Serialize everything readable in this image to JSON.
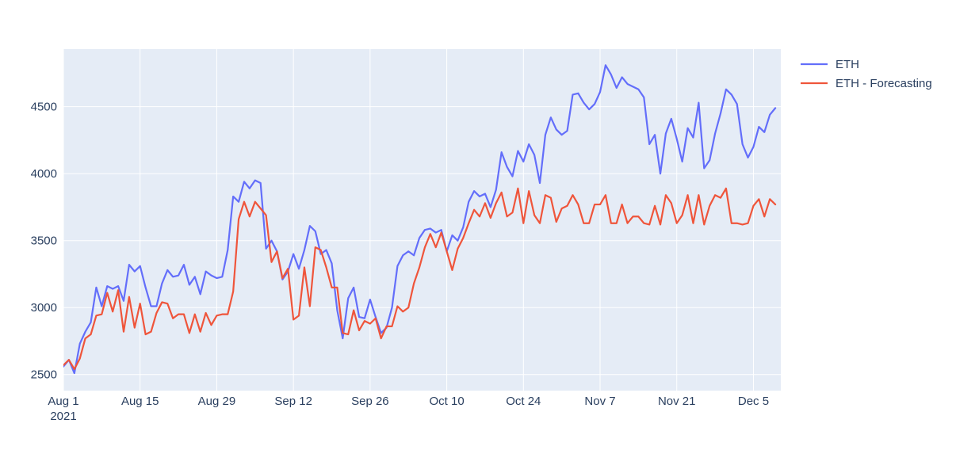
{
  "chart_data": {
    "type": "line",
    "x_start": "2021-08-01",
    "x_end": "2021-12-10",
    "x_ticks": [
      {
        "date": "2021-08-01",
        "label": "Aug 1",
        "sublabel": "2021"
      },
      {
        "date": "2021-08-15",
        "label": "Aug 15"
      },
      {
        "date": "2021-08-29",
        "label": "Aug 29"
      },
      {
        "date": "2021-09-12",
        "label": "Sep 12"
      },
      {
        "date": "2021-09-26",
        "label": "Sep 26"
      },
      {
        "date": "2021-10-10",
        "label": "Oct 10"
      },
      {
        "date": "2021-10-24",
        "label": "Oct 24"
      },
      {
        "date": "2021-11-07",
        "label": "Nov 7"
      },
      {
        "date": "2021-11-21",
        "label": "Nov 21"
      },
      {
        "date": "2021-12-05",
        "label": "Dec 5"
      }
    ],
    "ylim": [
      2380,
      4930
    ],
    "y_ticks": [
      2500,
      3000,
      3500,
      4000,
      4500
    ],
    "y_tick_labels": [
      "2500",
      "3000",
      "3500",
      "4000",
      "4500"
    ],
    "grid": true,
    "legend_position": "top-right",
    "series": [
      {
        "name": "ETH",
        "color": "#636efa",
        "points": [
          [
            "2021-08-01",
            2560
          ],
          [
            "2021-08-02",
            2610
          ],
          [
            "2021-08-03",
            2510
          ],
          [
            "2021-08-04",
            2730
          ],
          [
            "2021-08-05",
            2820
          ],
          [
            "2021-08-06",
            2890
          ],
          [
            "2021-08-07",
            3150
          ],
          [
            "2021-08-08",
            3010
          ],
          [
            "2021-08-09",
            3160
          ],
          [
            "2021-08-10",
            3140
          ],
          [
            "2021-08-11",
            3160
          ],
          [
            "2021-08-12",
            3050
          ],
          [
            "2021-08-13",
            3320
          ],
          [
            "2021-08-14",
            3270
          ],
          [
            "2021-08-15",
            3310
          ],
          [
            "2021-08-16",
            3150
          ],
          [
            "2021-08-17",
            3010
          ],
          [
            "2021-08-18",
            3010
          ],
          [
            "2021-08-19",
            3180
          ],
          [
            "2021-08-20",
            3280
          ],
          [
            "2021-08-21",
            3230
          ],
          [
            "2021-08-22",
            3240
          ],
          [
            "2021-08-23",
            3320
          ],
          [
            "2021-08-24",
            3170
          ],
          [
            "2021-08-25",
            3230
          ],
          [
            "2021-08-26",
            3100
          ],
          [
            "2021-08-27",
            3270
          ],
          [
            "2021-08-28",
            3240
          ],
          [
            "2021-08-29",
            3220
          ],
          [
            "2021-08-30",
            3230
          ],
          [
            "2021-08-31",
            3430
          ],
          [
            "2021-09-01",
            3830
          ],
          [
            "2021-09-02",
            3790
          ],
          [
            "2021-09-03",
            3940
          ],
          [
            "2021-09-04",
            3890
          ],
          [
            "2021-09-05",
            3950
          ],
          [
            "2021-09-06",
            3930
          ],
          [
            "2021-09-07",
            3440
          ],
          [
            "2021-09-08",
            3500
          ],
          [
            "2021-09-09",
            3420
          ],
          [
            "2021-09-10",
            3210
          ],
          [
            "2021-09-11",
            3270
          ],
          [
            "2021-09-12",
            3400
          ],
          [
            "2021-09-13",
            3290
          ],
          [
            "2021-09-14",
            3430
          ],
          [
            "2021-09-15",
            3610
          ],
          [
            "2021-09-16",
            3570
          ],
          [
            "2021-09-17",
            3400
          ],
          [
            "2021-09-18",
            3430
          ],
          [
            "2021-09-19",
            3330
          ],
          [
            "2021-09-20",
            2980
          ],
          [
            "2021-09-21",
            2770
          ],
          [
            "2021-09-22",
            3070
          ],
          [
            "2021-09-23",
            3150
          ],
          [
            "2021-09-24",
            2930
          ],
          [
            "2021-09-25",
            2920
          ],
          [
            "2021-09-26",
            3060
          ],
          [
            "2021-09-27",
            2930
          ],
          [
            "2021-09-28",
            2810
          ],
          [
            "2021-09-29",
            2850
          ],
          [
            "2021-09-30",
            3000
          ],
          [
            "2021-10-01",
            3310
          ],
          [
            "2021-10-02",
            3390
          ],
          [
            "2021-10-03",
            3420
          ],
          [
            "2021-10-04",
            3390
          ],
          [
            "2021-10-05",
            3520
          ],
          [
            "2021-10-06",
            3580
          ],
          [
            "2021-10-07",
            3590
          ],
          [
            "2021-10-08",
            3560
          ],
          [
            "2021-10-09",
            3580
          ],
          [
            "2021-10-10",
            3420
          ],
          [
            "2021-10-11",
            3540
          ],
          [
            "2021-10-12",
            3500
          ],
          [
            "2021-10-13",
            3600
          ],
          [
            "2021-10-14",
            3790
          ],
          [
            "2021-10-15",
            3870
          ],
          [
            "2021-10-16",
            3830
          ],
          [
            "2021-10-17",
            3850
          ],
          [
            "2021-10-18",
            3750
          ],
          [
            "2021-10-19",
            3880
          ],
          [
            "2021-10-20",
            4160
          ],
          [
            "2021-10-21",
            4050
          ],
          [
            "2021-10-22",
            3980
          ],
          [
            "2021-10-23",
            4170
          ],
          [
            "2021-10-24",
            4090
          ],
          [
            "2021-10-25",
            4220
          ],
          [
            "2021-10-26",
            4140
          ],
          [
            "2021-10-27",
            3930
          ],
          [
            "2021-10-28",
            4290
          ],
          [
            "2021-10-29",
            4420
          ],
          [
            "2021-10-30",
            4330
          ],
          [
            "2021-10-31",
            4290
          ],
          [
            "2021-11-01",
            4320
          ],
          [
            "2021-11-02",
            4590
          ],
          [
            "2021-11-03",
            4600
          ],
          [
            "2021-11-04",
            4530
          ],
          [
            "2021-11-05",
            4480
          ],
          [
            "2021-11-06",
            4520
          ],
          [
            "2021-11-07",
            4610
          ],
          [
            "2021-11-08",
            4810
          ],
          [
            "2021-11-09",
            4740
          ],
          [
            "2021-11-10",
            4640
          ],
          [
            "2021-11-11",
            4720
          ],
          [
            "2021-11-12",
            4670
          ],
          [
            "2021-11-13",
            4650
          ],
          [
            "2021-11-14",
            4630
          ],
          [
            "2021-11-15",
            4570
          ],
          [
            "2021-11-16",
            4220
          ],
          [
            "2021-11-17",
            4290
          ],
          [
            "2021-11-18",
            4000
          ],
          [
            "2021-11-19",
            4300
          ],
          [
            "2021-11-20",
            4410
          ],
          [
            "2021-11-21",
            4260
          ],
          [
            "2021-11-22",
            4090
          ],
          [
            "2021-11-23",
            4340
          ],
          [
            "2021-11-24",
            4270
          ],
          [
            "2021-11-25",
            4530
          ],
          [
            "2021-11-26",
            4040
          ],
          [
            "2021-11-27",
            4100
          ],
          [
            "2021-11-28",
            4300
          ],
          [
            "2021-11-29",
            4450
          ],
          [
            "2021-11-30",
            4630
          ],
          [
            "2021-12-01",
            4590
          ],
          [
            "2021-12-02",
            4520
          ],
          [
            "2021-12-03",
            4220
          ],
          [
            "2021-12-04",
            4120
          ],
          [
            "2021-12-05",
            4200
          ],
          [
            "2021-12-06",
            4350
          ],
          [
            "2021-12-07",
            4310
          ],
          [
            "2021-12-08",
            4440
          ],
          [
            "2021-12-09",
            4490
          ]
        ]
      },
      {
        "name": "ETH - Forecasting",
        "color": "#ef553b",
        "points": [
          [
            "2021-08-01",
            2570
          ],
          [
            "2021-08-02",
            2610
          ],
          [
            "2021-08-03",
            2540
          ],
          [
            "2021-08-04",
            2620
          ],
          [
            "2021-08-05",
            2770
          ],
          [
            "2021-08-06",
            2800
          ],
          [
            "2021-08-07",
            2940
          ],
          [
            "2021-08-08",
            2950
          ],
          [
            "2021-08-09",
            3110
          ],
          [
            "2021-08-10",
            2970
          ],
          [
            "2021-08-11",
            3130
          ],
          [
            "2021-08-12",
            2820
          ],
          [
            "2021-08-13",
            3080
          ],
          [
            "2021-08-14",
            2850
          ],
          [
            "2021-08-15",
            3030
          ],
          [
            "2021-08-16",
            2800
          ],
          [
            "2021-08-17",
            2820
          ],
          [
            "2021-08-18",
            2960
          ],
          [
            "2021-08-19",
            3040
          ],
          [
            "2021-08-20",
            3030
          ],
          [
            "2021-08-21",
            2920
          ],
          [
            "2021-08-22",
            2950
          ],
          [
            "2021-08-23",
            2950
          ],
          [
            "2021-08-24",
            2810
          ],
          [
            "2021-08-25",
            2950
          ],
          [
            "2021-08-26",
            2820
          ],
          [
            "2021-08-27",
            2960
          ],
          [
            "2021-08-28",
            2870
          ],
          [
            "2021-08-29",
            2940
          ],
          [
            "2021-08-30",
            2950
          ],
          [
            "2021-08-31",
            2950
          ],
          [
            "2021-09-01",
            3120
          ],
          [
            "2021-09-02",
            3660
          ],
          [
            "2021-09-03",
            3790
          ],
          [
            "2021-09-04",
            3680
          ],
          [
            "2021-09-05",
            3790
          ],
          [
            "2021-09-06",
            3740
          ],
          [
            "2021-09-07",
            3690
          ],
          [
            "2021-09-08",
            3340
          ],
          [
            "2021-09-09",
            3420
          ],
          [
            "2021-09-10",
            3220
          ],
          [
            "2021-09-11",
            3290
          ],
          [
            "2021-09-12",
            2910
          ],
          [
            "2021-09-13",
            2940
          ],
          [
            "2021-09-14",
            3300
          ],
          [
            "2021-09-15",
            3010
          ],
          [
            "2021-09-16",
            3450
          ],
          [
            "2021-09-17",
            3430
          ],
          [
            "2021-09-18",
            3300
          ],
          [
            "2021-09-19",
            3150
          ],
          [
            "2021-09-20",
            3150
          ],
          [
            "2021-09-21",
            2810
          ],
          [
            "2021-09-22",
            2800
          ],
          [
            "2021-09-23",
            2980
          ],
          [
            "2021-09-24",
            2830
          ],
          [
            "2021-09-25",
            2900
          ],
          [
            "2021-09-26",
            2880
          ],
          [
            "2021-09-27",
            2920
          ],
          [
            "2021-09-28",
            2770
          ],
          [
            "2021-09-29",
            2860
          ],
          [
            "2021-09-30",
            2860
          ],
          [
            "2021-10-01",
            3010
          ],
          [
            "2021-10-02",
            2970
          ],
          [
            "2021-10-03",
            3000
          ],
          [
            "2021-10-04",
            3180
          ],
          [
            "2021-10-05",
            3300
          ],
          [
            "2021-10-06",
            3450
          ],
          [
            "2021-10-07",
            3550
          ],
          [
            "2021-10-08",
            3450
          ],
          [
            "2021-10-09",
            3560
          ],
          [
            "2021-10-10",
            3420
          ],
          [
            "2021-10-11",
            3280
          ],
          [
            "2021-10-12",
            3440
          ],
          [
            "2021-10-13",
            3520
          ],
          [
            "2021-10-14",
            3630
          ],
          [
            "2021-10-15",
            3730
          ],
          [
            "2021-10-16",
            3680
          ],
          [
            "2021-10-17",
            3780
          ],
          [
            "2021-10-18",
            3670
          ],
          [
            "2021-10-19",
            3780
          ],
          [
            "2021-10-20",
            3860
          ],
          [
            "2021-10-21",
            3680
          ],
          [
            "2021-10-22",
            3710
          ],
          [
            "2021-10-23",
            3890
          ],
          [
            "2021-10-24",
            3630
          ],
          [
            "2021-10-25",
            3870
          ],
          [
            "2021-10-26",
            3690
          ],
          [
            "2021-10-27",
            3630
          ],
          [
            "2021-10-28",
            3840
          ],
          [
            "2021-10-29",
            3820
          ],
          [
            "2021-10-30",
            3640
          ],
          [
            "2021-10-31",
            3740
          ],
          [
            "2021-11-01",
            3760
          ],
          [
            "2021-11-02",
            3840
          ],
          [
            "2021-11-03",
            3770
          ],
          [
            "2021-11-04",
            3630
          ],
          [
            "2021-11-05",
            3630
          ],
          [
            "2021-11-06",
            3770
          ],
          [
            "2021-11-07",
            3770
          ],
          [
            "2021-11-08",
            3840
          ],
          [
            "2021-11-09",
            3630
          ],
          [
            "2021-11-10",
            3630
          ],
          [
            "2021-11-11",
            3770
          ],
          [
            "2021-11-12",
            3630
          ],
          [
            "2021-11-13",
            3680
          ],
          [
            "2021-11-14",
            3680
          ],
          [
            "2021-11-15",
            3630
          ],
          [
            "2021-11-16",
            3620
          ],
          [
            "2021-11-17",
            3760
          ],
          [
            "2021-11-18",
            3620
          ],
          [
            "2021-11-19",
            3840
          ],
          [
            "2021-11-20",
            3780
          ],
          [
            "2021-11-21",
            3630
          ],
          [
            "2021-11-22",
            3690
          ],
          [
            "2021-11-23",
            3840
          ],
          [
            "2021-11-24",
            3630
          ],
          [
            "2021-11-25",
            3840
          ],
          [
            "2021-11-26",
            3620
          ],
          [
            "2021-11-27",
            3760
          ],
          [
            "2021-11-28",
            3840
          ],
          [
            "2021-11-29",
            3820
          ],
          [
            "2021-11-30",
            3890
          ],
          [
            "2021-12-01",
            3630
          ],
          [
            "2021-12-02",
            3630
          ],
          [
            "2021-12-03",
            3620
          ],
          [
            "2021-12-04",
            3630
          ],
          [
            "2021-12-05",
            3760
          ],
          [
            "2021-12-06",
            3810
          ],
          [
            "2021-12-07",
            3680
          ],
          [
            "2021-12-08",
            3810
          ],
          [
            "2021-12-09",
            3770
          ]
        ]
      }
    ]
  }
}
